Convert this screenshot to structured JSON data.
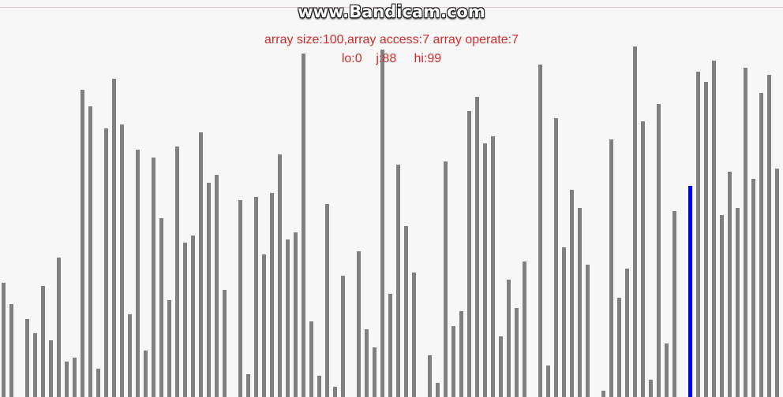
{
  "watermark": "www.Bandicam.com",
  "status": {
    "line1": "array size:100,array access:7 array operate:7",
    "lo": "lo:0",
    "j": "j:88",
    "hi": "hi:99"
  },
  "colors": {
    "bar": "#808080",
    "highlight": "#0000ee",
    "text": "#d42a2a"
  },
  "chart_data": {
    "type": "bar",
    "title": "",
    "xlabel": "",
    "ylabel": "",
    "ylim": [
      0,
      445
    ],
    "highlight_index": 87,
    "values": [
      145,
      118,
      0,
      99,
      81,
      141,
      72,
      177,
      45,
      50,
      390,
      369,
      36,
      341,
      404,
      346,
      105,
      314,
      59,
      304,
      227,
      123,
      318,
      196,
      205,
      336,
      272,
      282,
      136,
      0,
      250,
      29,
      254,
      181,
      259,
      308,
      200,
      209,
      436,
      96,
      27,
      245,
      13,
      154,
      0,
      185,
      86,
      63,
      441,
      131,
      295,
      217,
      158,
      0,
      53,
      18,
      299,
      90,
      109,
      363,
      381,
      322,
      331,
      77,
      149,
      113,
      172,
      0,
      422,
      40,
      354,
      190,
      263,
      240,
      168,
      0,
      8,
      327,
      126,
      163,
      445,
      350,
      22,
      372,
      68,
      236,
      0,
      268,
      413,
      400,
      427,
      231,
      286,
      240,
      418,
      277,
      386,
      409,
      290,
      0
    ]
  }
}
